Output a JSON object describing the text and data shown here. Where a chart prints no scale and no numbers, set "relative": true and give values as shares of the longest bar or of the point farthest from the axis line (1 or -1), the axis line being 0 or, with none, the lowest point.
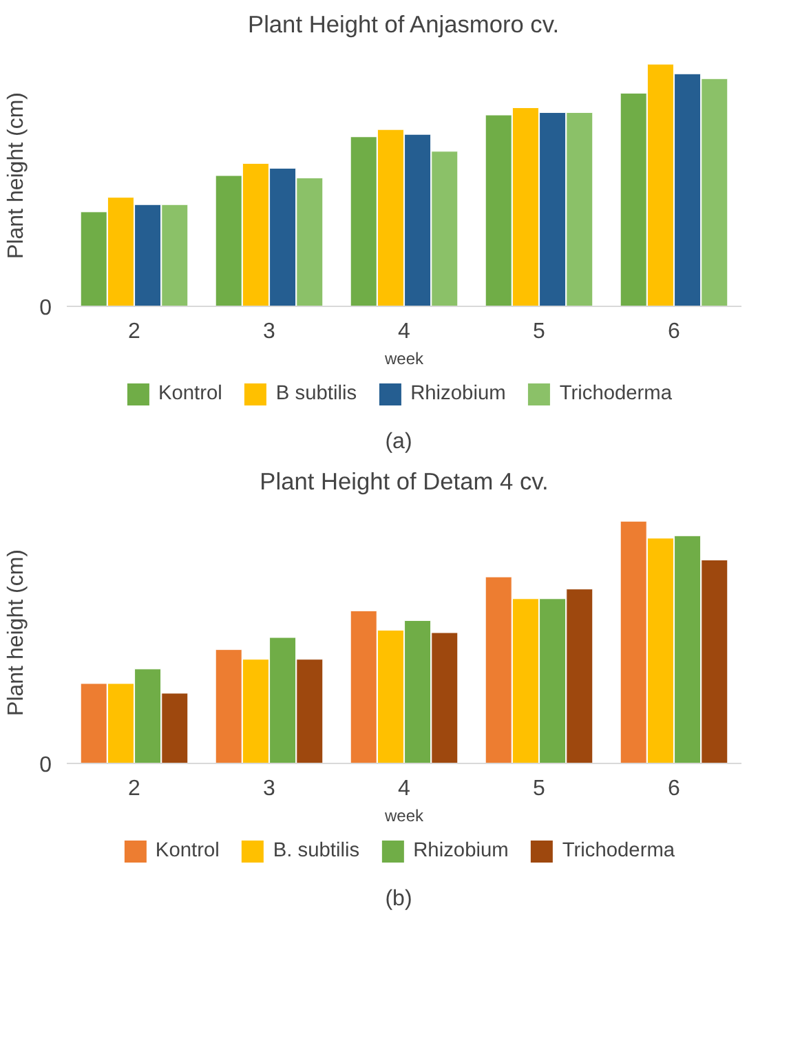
{
  "chart_data": [
    {
      "type": "bar",
      "title": "Plant Height of Anjasmoro cv.",
      "xlabel": "week",
      "ylabel": "Plant height (cm)",
      "relative": true,
      "legend": "bottom",
      "categories": [
        "2",
        "3",
        "4",
        "5",
        "6"
      ],
      "series": [
        {
          "name": "Kontrol",
          "color": "#70ad47",
          "values": [
            0.39,
            0.54,
            0.7,
            0.79,
            0.88
          ]
        },
        {
          "name": "B subtilis",
          "color": "#ffc000",
          "values": [
            0.45,
            0.59,
            0.73,
            0.82,
            1
          ]
        },
        {
          "name": "Rhizobium",
          "color": "#255e91",
          "values": [
            0.42,
            0.57,
            0.71,
            0.8,
            0.96
          ]
        },
        {
          "name": "Trichoderma",
          "color": "#8bc168",
          "values": [
            0.42,
            0.53,
            0.64,
            0.8,
            0.94
          ]
        }
      ],
      "annotations": [
        "0",
        "(a)"
      ]
    },
    {
      "type": "bar",
      "title": "Plant Height of Detam 4 cv.",
      "xlabel": "week",
      "ylabel": "Plant height (cm)",
      "relative": true,
      "legend": "bottom",
      "categories": [
        "2",
        "3",
        "4",
        "5",
        "6"
      ],
      "series": [
        {
          "name": "Kontrol",
          "color": "#ed7d31",
          "values": [
            0.33,
            0.47,
            0.63,
            0.77,
            1
          ]
        },
        {
          "name": "B. subtilis",
          "color": "#ffc000",
          "values": [
            0.33,
            0.43,
            0.55,
            0.68,
            0.93
          ]
        },
        {
          "name": "Rhizobium",
          "color": "#70ad47",
          "values": [
            0.39,
            0.52,
            0.59,
            0.68,
            0.94
          ]
        },
        {
          "name": "Trichoderma",
          "color": "#9e480e",
          "values": [
            0.29,
            0.43,
            0.54,
            0.72,
            0.84
          ]
        }
      ],
      "annotations": [
        "0",
        "(b)"
      ]
    }
  ]
}
